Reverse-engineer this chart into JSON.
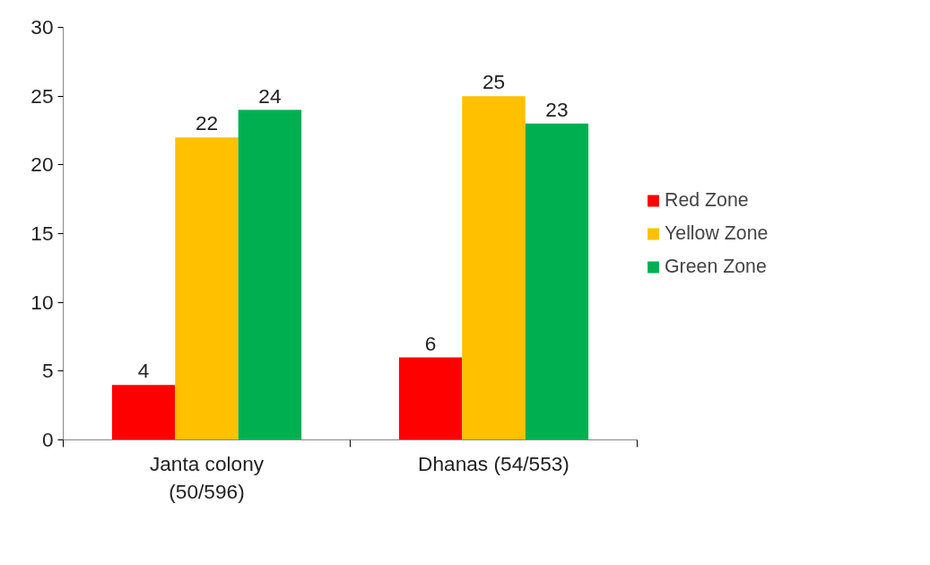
{
  "chart_data": {
    "type": "bar",
    "categories": [
      "Janta colony (50/596)",
      "Dhanas (54/553)"
    ],
    "series": [
      {
        "name": "Red Zone",
        "color": "#ff0000",
        "values": [
          4,
          6
        ]
      },
      {
        "name": "Yellow Zone",
        "color": "#ffc000",
        "values": [
          22,
          25
        ]
      },
      {
        "name": "Green Zone",
        "color": "#00b050",
        "values": [
          24,
          23
        ]
      }
    ],
    "ylim": [
      0,
      30
    ],
    "yticks": [
      0,
      5,
      10,
      15,
      20,
      25,
      30
    ],
    "grid": false,
    "legend": "right",
    "data_labels": true
  }
}
